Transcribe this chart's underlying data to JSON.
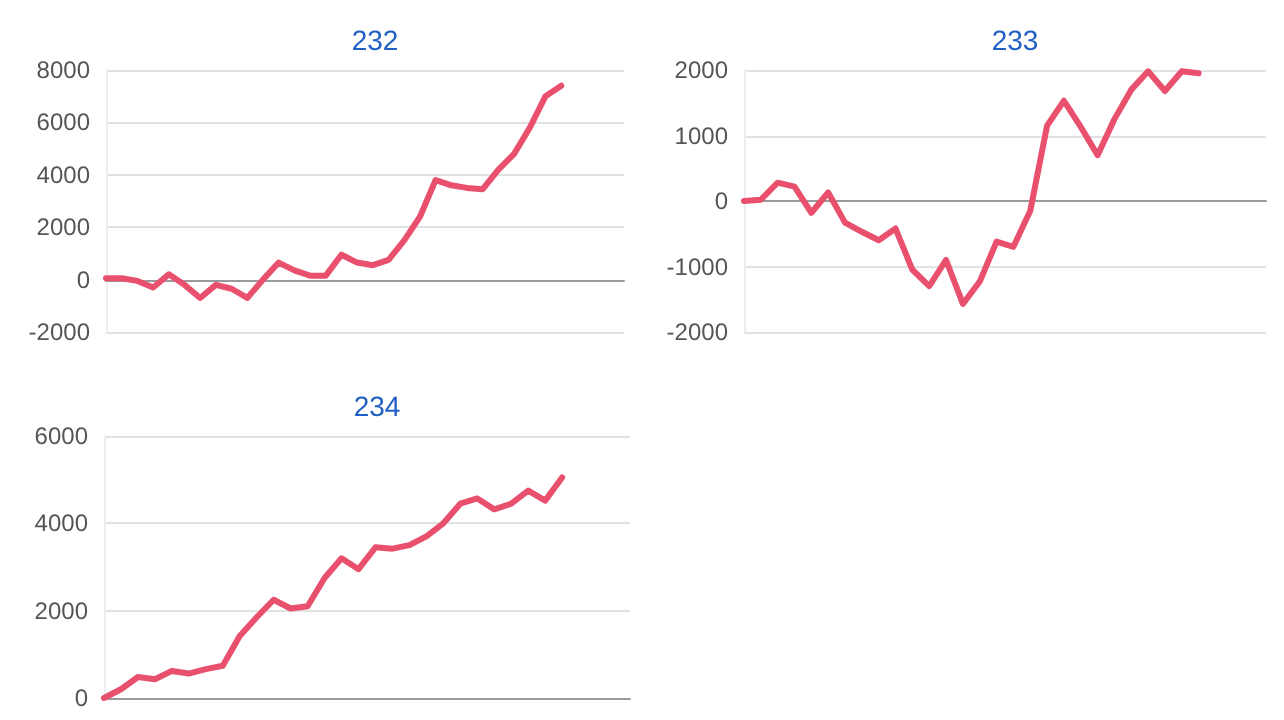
{
  "chart_data": [
    {
      "type": "line",
      "title": "232",
      "categories": [
        null,
        null,
        null,
        null,
        null,
        null,
        null,
        null,
        null,
        null,
        null,
        null,
        null,
        null,
        null,
        null,
        null,
        null,
        null,
        null,
        null,
        null,
        null,
        null,
        null,
        null,
        null,
        null,
        null,
        null
      ],
      "series": [
        {
          "color": "#e8506e",
          "values": [
            50,
            50,
            -50,
            -300,
            200,
            -200,
            -700,
            -200,
            -350,
            -700,
            0,
            650,
            350,
            150,
            150,
            950,
            650,
            550,
            750,
            1500,
            2400,
            3800,
            3600,
            3500,
            3450,
            4200,
            4800,
            5800,
            7000,
            7400
          ]
        }
      ],
      "ylim": [
        -2000,
        8000
      ],
      "yticks": [
        -2000,
        0,
        2000,
        4000,
        6000,
        8000
      ],
      "grid": "y"
    },
    {
      "type": "line",
      "title": "233",
      "categories": [
        null,
        null,
        null,
        null,
        null,
        null,
        null,
        null,
        null,
        null,
        null,
        null,
        null,
        null,
        null,
        null,
        null,
        null,
        null,
        null,
        null,
        null,
        null,
        null,
        null,
        null,
        null,
        null
      ],
      "series": [
        {
          "color": "#e8506e",
          "values": [
            0,
            20,
            280,
            220,
            -180,
            130,
            -330,
            -470,
            -600,
            -420,
            -1050,
            -1300,
            -900,
            -1570,
            -1230,
            -620,
            -700,
            -150,
            1150,
            1530,
            1130,
            700,
            1250,
            1700,
            1980,
            1680,
            1980,
            1950
          ]
        }
      ],
      "ylim": [
        -2000,
        2000
      ],
      "yticks": [
        -2000,
        -1000,
        0,
        1000,
        2000
      ],
      "grid": "y"
    },
    {
      "type": "line",
      "title": "234",
      "categories": [
        null,
        null,
        null,
        null,
        null,
        null,
        null,
        null,
        null,
        null,
        null,
        null,
        null,
        null,
        null,
        null,
        null,
        null,
        null,
        null,
        null,
        null,
        null,
        null,
        null,
        null,
        null,
        null
      ],
      "series": [
        {
          "color": "#e8506e",
          "values": [
            0,
            200,
            480,
            430,
            620,
            560,
            660,
            740,
            1420,
            1850,
            2250,
            2050,
            2100,
            2750,
            3200,
            2950,
            3450,
            3420,
            3500,
            3700,
            4000,
            4450,
            4570,
            4320,
            4450,
            4750,
            4520,
            5050
          ]
        }
      ],
      "ylim": [
        0,
        6000
      ],
      "yticks": [
        0,
        2000,
        4000,
        6000
      ],
      "grid": "y"
    }
  ]
}
